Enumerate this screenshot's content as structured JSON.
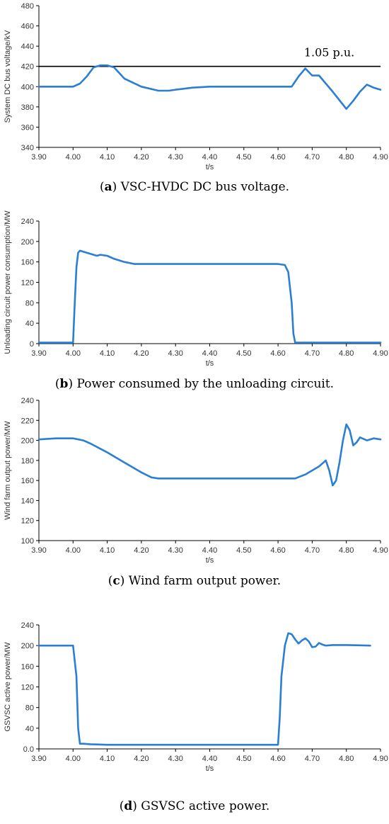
{
  "series_color": "#2a7fd4",
  "chart_data": [
    {
      "type": "line",
      "xlabel": "t/s",
      "ylabel": "System DC bus voltage/kV",
      "xlim": [
        3.9,
        4.9
      ],
      "ylim": [
        340,
        480
      ],
      "xticks": [
        "3.90",
        "4.00",
        "4.10",
        "4.20",
        "4.30",
        "4.40",
        "4.50",
        "4.60",
        "4.70",
        "4.80",
        "4.90"
      ],
      "yticks": [
        "340",
        "360",
        "380",
        "400",
        "420",
        "440",
        "460",
        "480"
      ],
      "caption_letter": "a",
      "caption_text": " VSC-HVDC DC bus voltage.",
      "reference_line": {
        "y": 420,
        "label": "1.05 p.u."
      },
      "series": [
        {
          "x": [
            3.9,
            3.95,
            4.0,
            4.02,
            4.04,
            4.06,
            4.08,
            4.1,
            4.12,
            4.15,
            4.2,
            4.25,
            4.28,
            4.3,
            4.35,
            4.4,
            4.5,
            4.6,
            4.64,
            4.66,
            4.68,
            4.7,
            4.72,
            4.76,
            4.8,
            4.82,
            4.84,
            4.86,
            4.88,
            4.9
          ],
          "y": [
            400,
            400,
            400,
            403,
            410,
            419,
            421,
            421,
            419,
            408,
            400,
            396,
            396,
            397,
            399,
            400,
            400,
            400,
            400,
            410,
            418,
            411,
            411,
            395,
            378,
            386,
            395,
            402,
            399,
            397
          ]
        }
      ]
    },
    {
      "type": "line",
      "xlabel": "t/s",
      "ylabel": "Unloading circuit power consumption/MW",
      "xlim": [
        3.9,
        4.9
      ],
      "ylim": [
        0,
        240
      ],
      "xticks": [
        "3.90",
        "4.00",
        "4.10",
        "4.20",
        "4.30",
        "4.40",
        "4.50",
        "4.60",
        "4.70",
        "4.80",
        "4.90"
      ],
      "yticks": [
        "0",
        "40",
        "80",
        "120",
        "160",
        "200",
        "240"
      ],
      "caption_letter": "b",
      "caption_text": " Power consumed by the unloading circuit.",
      "series": [
        {
          "x": [
            3.9,
            4.0,
            4.005,
            4.01,
            4.015,
            4.02,
            4.03,
            4.05,
            4.07,
            4.08,
            4.1,
            4.12,
            4.15,
            4.18,
            4.2,
            4.3,
            4.4,
            4.5,
            4.6,
            4.62,
            4.63,
            4.64,
            4.645,
            4.65,
            4.7,
            4.8,
            4.9
          ],
          "y": [
            2,
            2,
            80,
            150,
            178,
            182,
            180,
            176,
            172,
            174,
            172,
            166,
            160,
            156,
            156,
            156,
            156,
            156,
            156,
            154,
            140,
            80,
            20,
            2,
            2,
            2,
            2
          ]
        }
      ]
    },
    {
      "type": "line",
      "xlabel": "t/s",
      "ylabel": "Wind farm output power/MW",
      "xlim": [
        3.9,
        4.9
      ],
      "ylim": [
        100,
        240
      ],
      "xticks": [
        "3.90",
        "4.00",
        "4.10",
        "4.20",
        "4.30",
        "4.40",
        "4.50",
        "4.60",
        "4.70",
        "4.80",
        "4.90"
      ],
      "yticks": [
        "100",
        "120",
        "140",
        "160",
        "180",
        "200",
        "220",
        "240"
      ],
      "caption_letter": "c",
      "caption_text": " Wind farm output power.",
      "series": [
        {
          "x": [
            3.9,
            3.95,
            4.0,
            4.03,
            4.05,
            4.1,
            4.15,
            4.2,
            4.23,
            4.25,
            4.3,
            4.4,
            4.5,
            4.6,
            4.65,
            4.68,
            4.7,
            4.72,
            4.74,
            4.75,
            4.76,
            4.77,
            4.78,
            4.79,
            4.8,
            4.81,
            4.82,
            4.83,
            4.84,
            4.86,
            4.88,
            4.9
          ],
          "y": [
            201,
            202,
            202,
            200,
            197,
            188,
            178,
            168,
            163,
            162,
            162,
            162,
            162,
            162,
            162,
            166,
            170,
            174,
            180,
            170,
            155,
            160,
            178,
            200,
            216,
            210,
            195,
            198,
            203,
            200,
            202,
            201
          ]
        }
      ]
    },
    {
      "type": "line",
      "xlabel": "t/s",
      "ylabel": "GSVSC active power/MW",
      "xlim": [
        3.9,
        4.9
      ],
      "ylim": [
        0,
        240
      ],
      "xticks": [
        "3.90",
        "4.00",
        "4.10",
        "4.20",
        "4.30",
        "4.40",
        "4.50",
        "4.60",
        "4.70",
        "4.80",
        "4.90"
      ],
      "yticks": [
        "0.0",
        "40",
        "80",
        "120",
        "160",
        "200",
        "240"
      ],
      "caption_letter": "d",
      "caption_text": " GSVSC active power.",
      "series": [
        {
          "x": [
            3.9,
            3.95,
            4.0,
            4.01,
            4.015,
            4.02,
            4.03,
            4.05,
            4.1,
            4.2,
            4.3,
            4.4,
            4.5,
            4.6,
            4.605,
            4.61,
            4.62,
            4.63,
            4.64,
            4.65,
            4.66,
            4.67,
            4.68,
            4.69,
            4.7,
            4.71,
            4.72,
            4.73,
            4.74,
            4.76,
            4.8,
            4.87
          ],
          "y": [
            200,
            200,
            200,
            140,
            40,
            10,
            10,
            9,
            8,
            8,
            8,
            8,
            8,
            8,
            60,
            140,
            200,
            224,
            222,
            212,
            204,
            210,
            214,
            208,
            197,
            198,
            205,
            202,
            200,
            201,
            201,
            200
          ]
        }
      ]
    }
  ]
}
